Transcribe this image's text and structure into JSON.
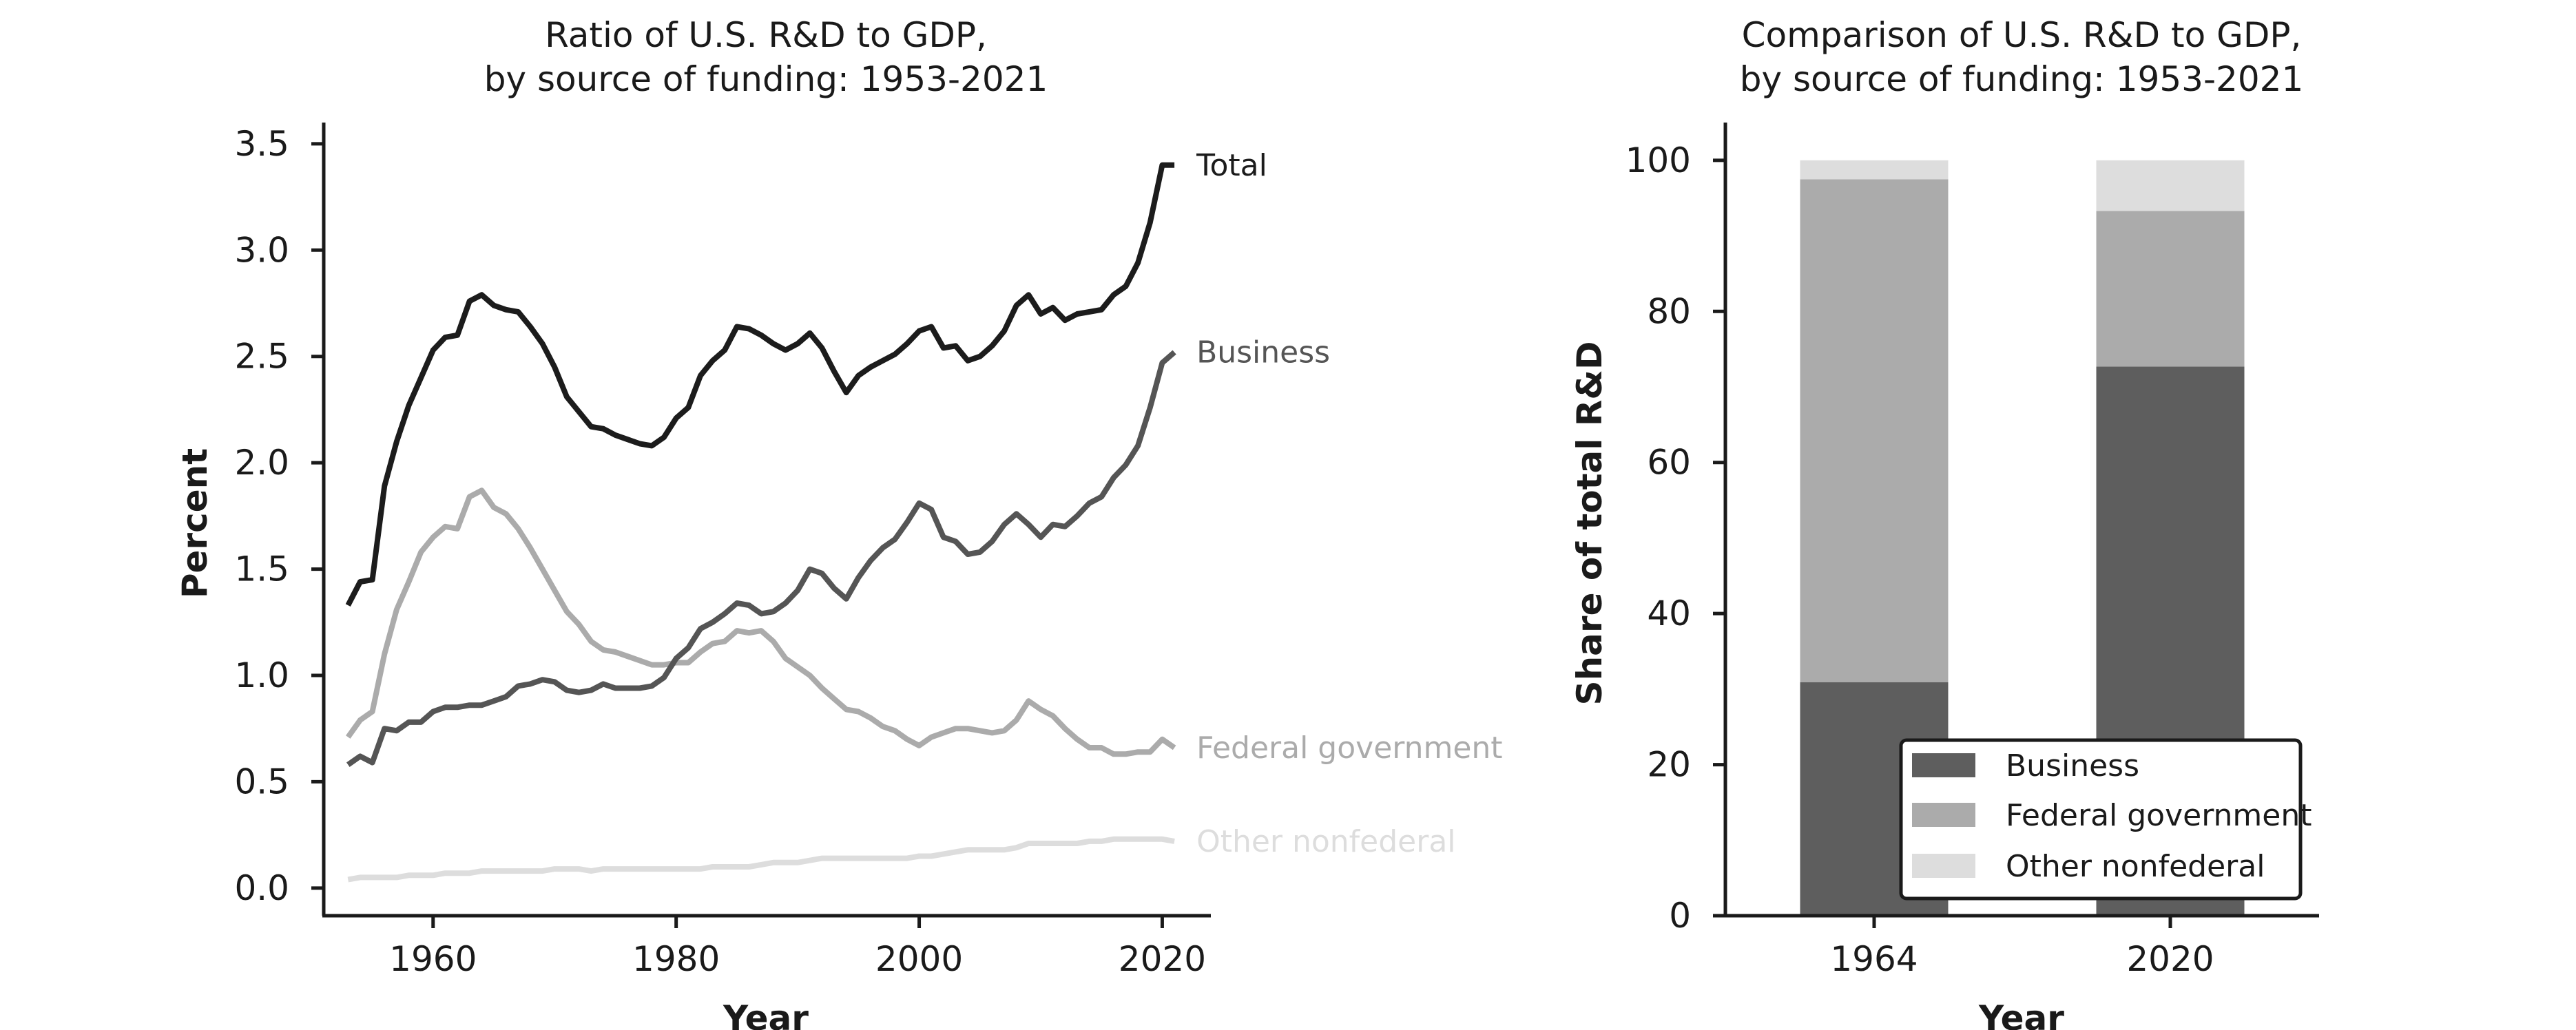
{
  "chart_data": [
    {
      "type": "line",
      "title_line1": "Ratio of U.S. R&D to GDP,",
      "title_line2": "by source of funding: 1953-2021",
      "xlabel": "Year",
      "ylabel": "Percent",
      "xlim": [
        1951,
        2024
      ],
      "ylim": [
        -0.13,
        3.6
      ],
      "xticks": [
        1960,
        1980,
        2000,
        2020
      ],
      "yticks": [
        0.0,
        0.5,
        1.0,
        1.5,
        2.0,
        2.5,
        3.0,
        3.5
      ],
      "ytick_labels": [
        "0.0",
        "0.5",
        "1.0",
        "1.5",
        "2.0",
        "2.5",
        "3.0",
        "3.5"
      ],
      "grid": false,
      "legend": "direct labels at line ends",
      "x": [
        1953,
        1954,
        1955,
        1956,
        1957,
        1958,
        1959,
        1960,
        1961,
        1962,
        1963,
        1964,
        1965,
        1966,
        1967,
        1968,
        1969,
        1970,
        1971,
        1972,
        1973,
        1974,
        1975,
        1976,
        1977,
        1978,
        1979,
        1980,
        1981,
        1982,
        1983,
        1984,
        1985,
        1986,
        1987,
        1988,
        1989,
        1990,
        1991,
        1992,
        1993,
        1994,
        1995,
        1996,
        1997,
        1998,
        1999,
        2000,
        2001,
        2002,
        2003,
        2004,
        2005,
        2006,
        2007,
        2008,
        2009,
        2010,
        2011,
        2012,
        2013,
        2014,
        2015,
        2016,
        2017,
        2018,
        2019,
        2020,
        2021
      ],
      "series": [
        {
          "name": "Total",
          "color": "#1c1c1c",
          "values": [
            1.33,
            1.44,
            1.45,
            1.89,
            2.1,
            2.27,
            2.4,
            2.53,
            2.59,
            2.6,
            2.76,
            2.79,
            2.74,
            2.72,
            2.71,
            2.64,
            2.56,
            2.45,
            2.31,
            2.24,
            2.17,
            2.16,
            2.13,
            2.11,
            2.09,
            2.08,
            2.12,
            2.21,
            2.26,
            2.41,
            2.48,
            2.53,
            2.64,
            2.63,
            2.6,
            2.56,
            2.53,
            2.56,
            2.61,
            2.54,
            2.43,
            2.33,
            2.41,
            2.45,
            2.48,
            2.51,
            2.56,
            2.62,
            2.64,
            2.54,
            2.55,
            2.48,
            2.5,
            2.55,
            2.62,
            2.74,
            2.79,
            2.7,
            2.73,
            2.67,
            2.7,
            2.71,
            2.72,
            2.79,
            2.83,
            2.94,
            3.13,
            3.4,
            3.4
          ]
        },
        {
          "name": "Business",
          "color": "#555555",
          "values": [
            0.58,
            0.62,
            0.59,
            0.75,
            0.74,
            0.78,
            0.78,
            0.83,
            0.85,
            0.85,
            0.86,
            0.86,
            0.88,
            0.9,
            0.95,
            0.96,
            0.98,
            0.97,
            0.93,
            0.92,
            0.93,
            0.96,
            0.94,
            0.94,
            0.94,
            0.95,
            0.99,
            1.08,
            1.13,
            1.22,
            1.25,
            1.29,
            1.34,
            1.33,
            1.29,
            1.3,
            1.34,
            1.4,
            1.5,
            1.48,
            1.41,
            1.36,
            1.46,
            1.54,
            1.6,
            1.64,
            1.72,
            1.81,
            1.78,
            1.65,
            1.63,
            1.57,
            1.58,
            1.63,
            1.71,
            1.76,
            1.71,
            1.65,
            1.71,
            1.7,
            1.75,
            1.81,
            1.84,
            1.93,
            1.99,
            2.08,
            2.26,
            2.47,
            2.52
          ]
        },
        {
          "name": "Federal government",
          "color": "#ababab",
          "values": [
            0.71,
            0.79,
            0.83,
            1.1,
            1.31,
            1.44,
            1.58,
            1.65,
            1.7,
            1.69,
            1.84,
            1.87,
            1.79,
            1.76,
            1.69,
            1.6,
            1.5,
            1.4,
            1.3,
            1.24,
            1.16,
            1.12,
            1.11,
            1.09,
            1.07,
            1.05,
            1.05,
            1.06,
            1.06,
            1.11,
            1.15,
            1.16,
            1.21,
            1.2,
            1.21,
            1.16,
            1.08,
            1.04,
            1.0,
            0.94,
            0.89,
            0.84,
            0.83,
            0.8,
            0.76,
            0.74,
            0.7,
            0.67,
            0.71,
            0.73,
            0.75,
            0.75,
            0.74,
            0.73,
            0.74,
            0.79,
            0.88,
            0.84,
            0.81,
            0.75,
            0.7,
            0.66,
            0.66,
            0.63,
            0.63,
            0.64,
            0.64,
            0.7,
            0.66
          ]
        },
        {
          "name": "Other nonfederal",
          "color": "#dddddd",
          "values": [
            0.04,
            0.05,
            0.05,
            0.05,
            0.05,
            0.06,
            0.06,
            0.06,
            0.07,
            0.07,
            0.07,
            0.08,
            0.08,
            0.08,
            0.08,
            0.08,
            0.08,
            0.09,
            0.09,
            0.09,
            0.08,
            0.09,
            0.09,
            0.09,
            0.09,
            0.09,
            0.09,
            0.09,
            0.09,
            0.09,
            0.1,
            0.1,
            0.1,
            0.1,
            0.11,
            0.12,
            0.12,
            0.12,
            0.13,
            0.14,
            0.14,
            0.14,
            0.14,
            0.14,
            0.14,
            0.14,
            0.14,
            0.15,
            0.15,
            0.16,
            0.17,
            0.18,
            0.18,
            0.18,
            0.18,
            0.19,
            0.21,
            0.21,
            0.21,
            0.21,
            0.21,
            0.22,
            0.22,
            0.23,
            0.23,
            0.23,
            0.23,
            0.23,
            0.22
          ]
        }
      ]
    },
    {
      "type": "bar",
      "stacked": true,
      "title_line1": "Comparison of U.S. R&D to GDP,",
      "title_line2": "by source of funding: 1953-2021",
      "xlabel": "Year",
      "ylabel": "Share of total R&D",
      "categories": [
        "1964",
        "2020"
      ],
      "ylim": [
        0,
        105
      ],
      "yticks": [
        0,
        20,
        40,
        60,
        80,
        100
      ],
      "grid": false,
      "legend": "lower-right",
      "series": [
        {
          "name": "Business",
          "color": "#5e5e5e",
          "values": [
            30.9,
            72.7
          ]
        },
        {
          "name": "Federal government",
          "color": "#ababab",
          "values": [
            66.6,
            20.6
          ]
        },
        {
          "name": "Other nonfederal",
          "color": "#dddddd",
          "values": [
            2.5,
            6.7
          ]
        }
      ]
    }
  ]
}
